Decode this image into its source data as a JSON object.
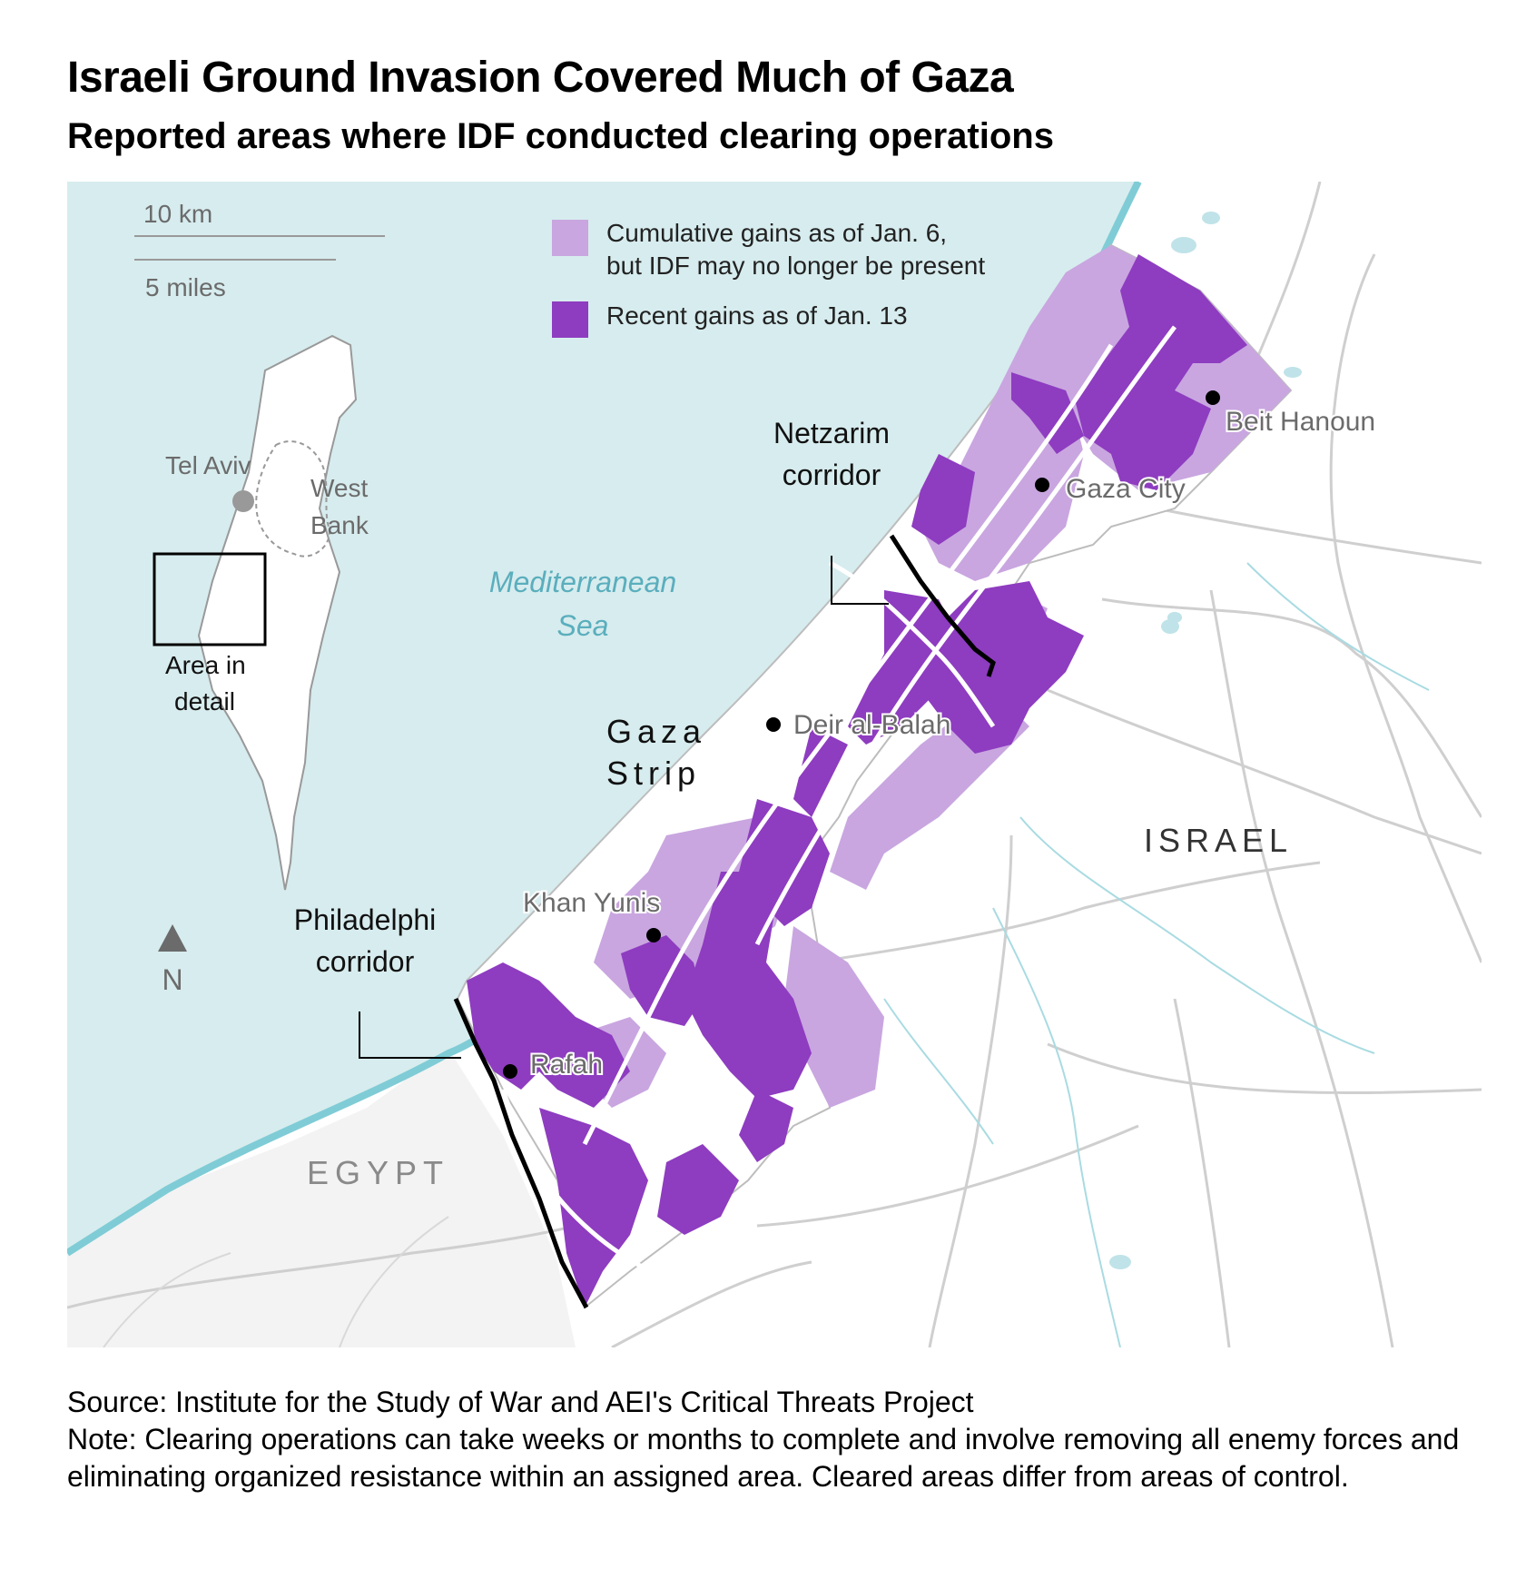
{
  "title": "Israeli Ground Invasion Covered Much of Gaza",
  "subtitle": "Reported areas where IDF conducted clearing operations",
  "scale": {
    "km": "10 km",
    "miles": "5 miles"
  },
  "legend": {
    "cumulative_line1": "Cumulative gains as of Jan. 6,",
    "cumulative_line2": "but IDF may no longer be present",
    "recent": "Recent gains as of Jan. 13"
  },
  "colors": {
    "sea": "#d7ecee",
    "coast": "#7fccd6",
    "cumulative": "#c9a6e0",
    "recent": "#8e3cc0",
    "label_sea": "#5aaebd",
    "label_gray": "#6b6b6b"
  },
  "inset": {
    "tel_aviv": "Tel Aviv",
    "west_bank_1": "West",
    "west_bank_2": "Bank",
    "area_1": "Area in",
    "area_2": "detail"
  },
  "north": "N",
  "sea_label_1": "Mediterranean",
  "sea_label_2": "Sea",
  "region_labels": {
    "gaza_1": "Gaza",
    "gaza_2": "Strip",
    "israel": "ISRAEL",
    "egypt": "EGYPT"
  },
  "cities": {
    "beit_hanoun": "Beit Hanoun",
    "gaza_city": "Gaza City",
    "deir_al_balah": "Deir al-Balah",
    "khan_yunis": "Khan Yunis",
    "rafah": "Rafah"
  },
  "corridors": {
    "netzarim_1": "Netzarim",
    "netzarim_2": "corridor",
    "philadelphi_1": "Philadelphi",
    "philadelphi_2": "corridor"
  },
  "footer": {
    "source": "Source: Institute for the Study of War and AEI's Critical Threats Project",
    "note": "Note: Clearing operations can take weeks or months to complete and involve removing all enemy forces and eliminating organized resistance within an assigned area. Cleared areas differ from areas of control."
  }
}
